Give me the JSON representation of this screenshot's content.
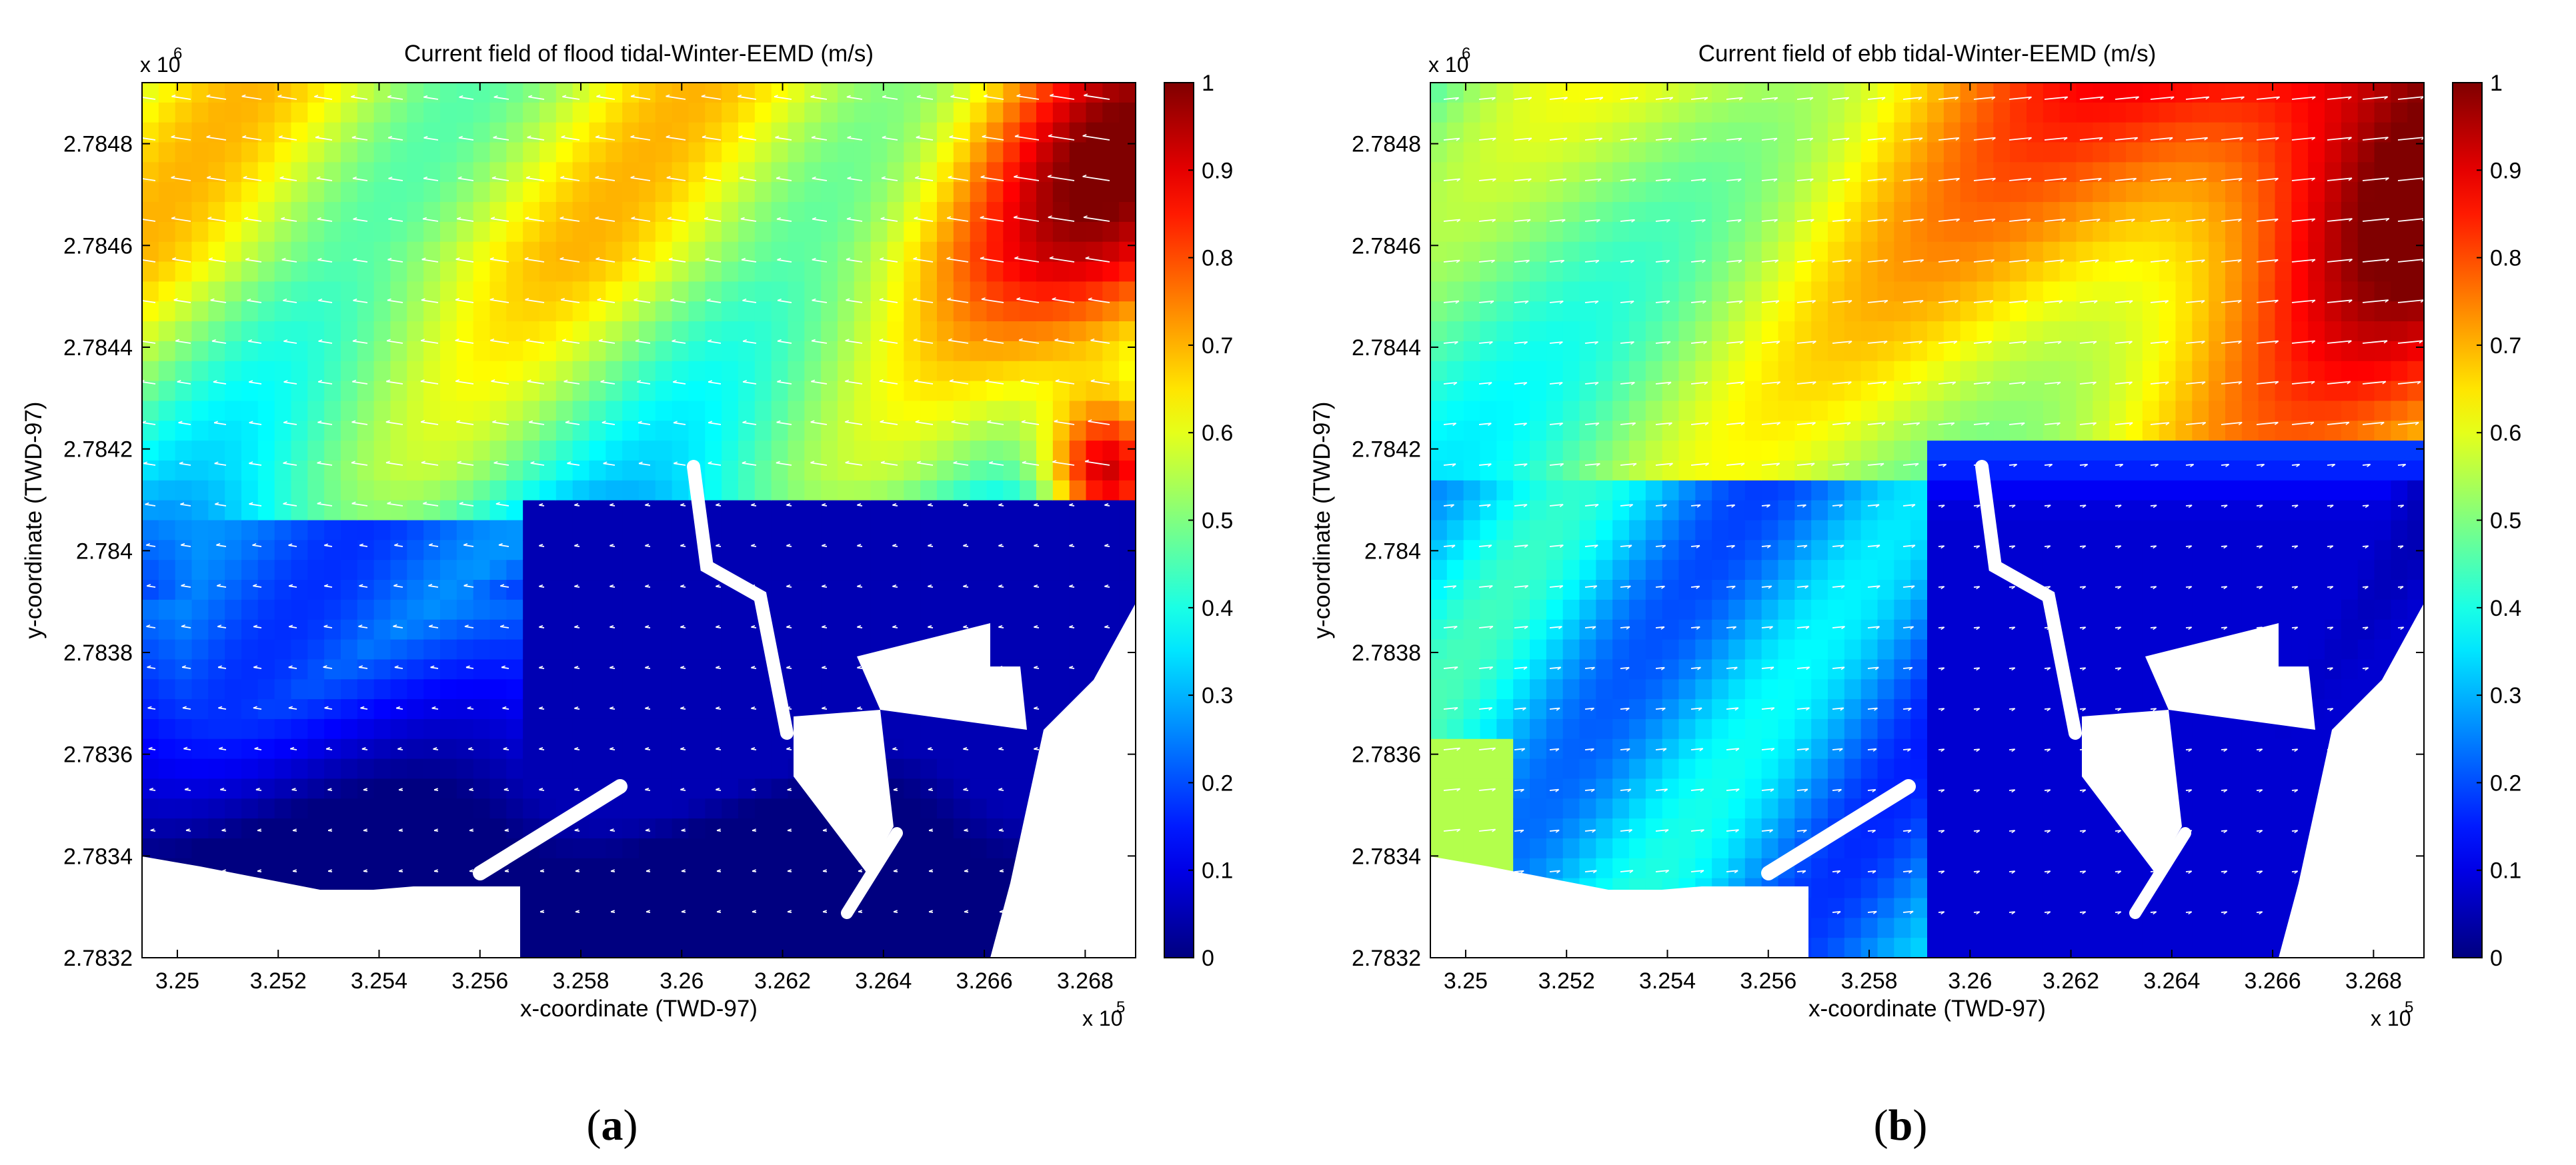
{
  "chart_data": [
    {
      "type": "heatmap",
      "panel_label": "(a)",
      "title": "Current field of flood tidal-Winter-EEMD (m/s)",
      "xlabel": "x-coordinate (TWD-97)",
      "ylabel": "y-coordinate (TWD-97)",
      "x_multiplier": "x 10",
      "x_multiplier_exp": "5",
      "y_multiplier": "x 10",
      "y_multiplier_exp": "6",
      "x_ticks": [
        "3.25",
        "3.252",
        "3.254",
        "3.256",
        "3.258",
        "3.26",
        "3.262",
        "3.264",
        "3.266",
        "3.268"
      ],
      "y_ticks": [
        "2.7848",
        "2.7846",
        "2.7844",
        "2.7842",
        "2.784",
        "2.7838",
        "2.7836",
        "2.7834",
        "2.7832"
      ],
      "xlim": [
        324930,
        326900
      ],
      "ylim": [
        2783200,
        2784920
      ],
      "colorbar_ticks": [
        "1",
        "0.9",
        "0.8",
        "0.7",
        "0.6",
        "0.5",
        "0.4",
        "0.3",
        "0.2",
        "0.1",
        "0"
      ],
      "colorbar_range": [
        0,
        1
      ],
      "colormap": "jet",
      "vectors": "white arrows (current direction)",
      "regions_approx": [
        {
          "area": "north, upper-left to center",
          "speed": 0.55
        },
        {
          "area": "north-east corner",
          "speed": 0.75
        },
        {
          "area": "east shore near (3.2675e5, 2.7841e6)",
          "speed": 0.95
        },
        {
          "area": "center band y≈2.7843e6",
          "speed": 0.4
        },
        {
          "area": "west, y 2.7834–2.7841e6",
          "speed": 0.12
        },
        {
          "area": "south harbor basins",
          "speed": 0.03
        }
      ]
    },
    {
      "type": "heatmap",
      "panel_label": "(b)",
      "title": "Current field of ebb tidal-Winter-EEMD (m/s)",
      "xlabel": "x-coordinate (TWD-97)",
      "ylabel": "y-coordinate (TWD-97)",
      "x_multiplier": "x 10",
      "x_multiplier_exp": "5",
      "y_multiplier": "x 10",
      "y_multiplier_exp": "6",
      "x_ticks": [
        "3.25",
        "3.252",
        "3.254",
        "3.256",
        "3.258",
        "3.26",
        "3.262",
        "3.264",
        "3.266",
        "3.268"
      ],
      "y_ticks": [
        "2.7848",
        "2.7846",
        "2.7844",
        "2.7842",
        "2.784",
        "2.7838",
        "2.7836",
        "2.7834",
        "2.7832"
      ],
      "xlim": [
        324930,
        326900
      ],
      "ylim": [
        2783200,
        2784920
      ],
      "colorbar_ticks": [
        "1",
        "0.9",
        "0.8",
        "0.7",
        "0.6",
        "0.5",
        "0.4",
        "0.3",
        "0.2",
        "0.1",
        "0"
      ],
      "colorbar_range": [
        0,
        1
      ],
      "colormap": "jet",
      "vectors": "white arrows (current direction)",
      "regions_approx": [
        {
          "area": "north-west",
          "speed": 0.45
        },
        {
          "area": "north center",
          "speed": 0.6
        },
        {
          "area": "north-east corner",
          "speed": 0.9
        },
        {
          "area": "west shore",
          "speed": 0.35
        },
        {
          "area": "harbor / south-east basins",
          "speed": 0.05
        }
      ]
    }
  ]
}
